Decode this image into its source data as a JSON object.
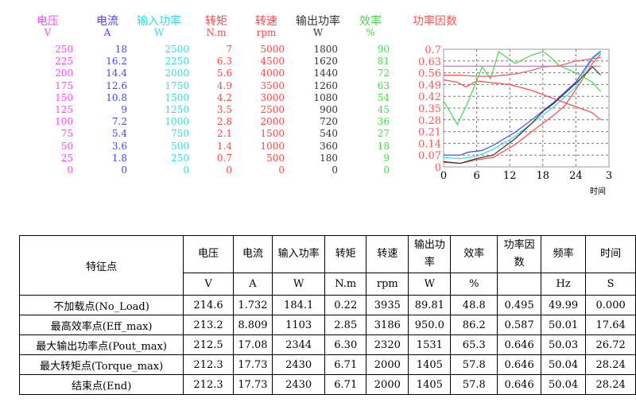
{
  "chart_data": {
    "type": "line",
    "xlabel": "时间",
    "x_ticks": [
      "0",
      "6",
      "12",
      "18",
      "24",
      "3"
    ],
    "xlim": [
      0,
      30
    ],
    "axes": [
      {
        "name": "电压",
        "unit": "V",
        "color": "#ff44ff",
        "ticks": [
          "250",
          "225",
          "200",
          "175",
          "150",
          "125",
          "100",
          "75",
          "50",
          "25",
          "0"
        ],
        "max": 250
      },
      {
        "name": "电流",
        "unit": "A",
        "color": "#4444ff",
        "ticks": [
          "18",
          "16.2",
          "14.4",
          "12.6",
          "10.8",
          "9",
          "7.2",
          "5.4",
          "3.6",
          "1.8",
          "0"
        ],
        "max": 18
      },
      {
        "name": "输入功率",
        "unit": "W",
        "color": "#33dddd",
        "ticks": [
          "2500",
          "2250",
          "2000",
          "1750",
          "1500",
          "1250",
          "1000",
          "750",
          "500",
          "250",
          "0"
        ],
        "max": 2500
      },
      {
        "name": "转矩",
        "unit": "N.m",
        "color": "#ff4444",
        "ticks": [
          "7",
          "6.3",
          "5.6",
          "4.9",
          "4.2",
          "3.5",
          "2.8",
          "2.1",
          "1.4",
          "0.7",
          "0"
        ],
        "max": 7
      },
      {
        "name": "转速",
        "unit": "rpm",
        "color": "#ff4444",
        "ticks": [
          "5000",
          "4500",
          "4000",
          "3500",
          "3000",
          "2500",
          "2000",
          "1500",
          "1000",
          "500",
          "0"
        ],
        "max": 5000
      },
      {
        "name": "输出功率",
        "unit": "W",
        "color": "#333333",
        "ticks": [
          "1800",
          "1620",
          "1440",
          "1260",
          "1080",
          "900",
          "720",
          "540",
          "360",
          "180",
          "0"
        ],
        "max": 1800
      },
      {
        "name": "效率",
        "unit": "%",
        "color": "#44dd44",
        "ticks": [
          "90",
          "81",
          "72",
          "63",
          "54",
          "45",
          "36",
          "27",
          "18",
          "9",
          "0"
        ],
        "max": 90
      },
      {
        "name": "功率因数",
        "unit": "",
        "color": "#ff5555",
        "ticks": [
          "0.7",
          "0.63",
          "0.56",
          "0.49",
          "0.42",
          "0.35",
          "0.28",
          "0.21",
          "0.14",
          "0.07",
          "0"
        ],
        "max": 0.7
      }
    ],
    "series": [
      {
        "name": "电压",
        "axis": 0,
        "points": [
          [
            0,
            214
          ],
          [
            28.5,
            214
          ]
        ]
      },
      {
        "name": "电流",
        "axis": 1,
        "points": [
          [
            0,
            1.8
          ],
          [
            3,
            1.8
          ],
          [
            4.5,
            2.25
          ],
          [
            7,
            2.5
          ],
          [
            9,
            3.3
          ],
          [
            13,
            5.3
          ],
          [
            16,
            7.2
          ],
          [
            20,
            9.9
          ],
          [
            24,
            13
          ],
          [
            27,
            16.7
          ],
          [
            28.5,
            17.73
          ]
        ]
      },
      {
        "name": "输入功率",
        "axis": 2,
        "points": [
          [
            0,
            200
          ],
          [
            3,
            175
          ],
          [
            6,
            225
          ],
          [
            9,
            375
          ],
          [
            13,
            650
          ],
          [
            16,
            925
          ],
          [
            20,
            1275
          ],
          [
            24,
            1700
          ],
          [
            27,
            2300
          ],
          [
            28.5,
            2430
          ]
        ]
      },
      {
        "name": "转矩",
        "axis": 3,
        "points": [
          [
            0,
            0.28
          ],
          [
            3,
            0.21
          ],
          [
            6,
            0.42
          ],
          [
            9,
            0.56
          ],
          [
            13,
            1.33
          ],
          [
            16,
            2.1
          ],
          [
            20,
            3.08
          ],
          [
            22,
            3.64
          ],
          [
            25,
            5.1
          ],
          [
            27,
            6.16
          ],
          [
            28.5,
            6.71
          ]
        ]
      },
      {
        "name": "转速",
        "axis": 4,
        "points": [
          [
            0,
            3700
          ],
          [
            2.5,
            3600
          ],
          [
            4,
            3400
          ],
          [
            6,
            3650
          ],
          [
            12,
            3500
          ],
          [
            16,
            3250
          ],
          [
            20,
            2900
          ],
          [
            27,
            2300
          ],
          [
            28.5,
            2000
          ]
        ]
      },
      {
        "name": "输出功率",
        "axis": 5,
        "points": [
          [
            0,
            81
          ],
          [
            3,
            54
          ],
          [
            6,
            126
          ],
          [
            9,
            180
          ],
          [
            13,
            432
          ],
          [
            16,
            666
          ],
          [
            18,
            846
          ],
          [
            20,
            972
          ],
          [
            24,
            1278
          ],
          [
            27,
            1530
          ],
          [
            28.5,
            1405
          ]
        ]
      },
      {
        "name": "效率",
        "axis": 6,
        "points": [
          [
            0,
            50.4
          ],
          [
            2.5,
            32.4
          ],
          [
            4.5,
            50.4
          ],
          [
            7,
            76.5
          ],
          [
            8.5,
            67.5
          ],
          [
            10,
            88.2
          ],
          [
            13,
            79.2
          ],
          [
            16,
            85.5
          ],
          [
            18,
            88.2
          ],
          [
            19,
            85.5
          ],
          [
            21,
            77.4
          ],
          [
            24,
            72
          ],
          [
            27,
            64.8
          ],
          [
            28.5,
            57.6
          ]
        ]
      },
      {
        "name": "功率因数",
        "axis": 7,
        "points": [
          [
            0,
            0.546
          ],
          [
            3,
            0.546
          ],
          [
            6,
            0.539
          ],
          [
            9,
            0.539
          ],
          [
            13,
            0.553
          ],
          [
            16,
            0.574
          ],
          [
            18,
            0.595
          ],
          [
            21,
            0.602
          ],
          [
            24,
            0.63
          ],
          [
            28.5,
            0.651
          ]
        ]
      }
    ]
  },
  "table": {
    "header": [
      "特征点",
      "电压",
      "电流",
      "输入功率",
      "转矩",
      "转速",
      "输出功率",
      "效率",
      "功率因数",
      "频率",
      "时间"
    ],
    "units": [
      "V",
      "A",
      "W",
      "N.m",
      "rpm",
      "W",
      "%",
      "",
      "Hz",
      "S"
    ],
    "rows": [
      [
        "不加载点(No_Load)",
        "214.6",
        "1.732",
        "184.1",
        "0.22",
        "3935",
        "89.81",
        "48.8",
        "0.495",
        "49.99",
        "0.000"
      ],
      [
        "最高效率点(Eff_max)",
        "213.2",
        "8.809",
        "1103",
        "2.85",
        "3186",
        "950.0",
        "86.2",
        "0.587",
        "50.01",
        "17.64"
      ],
      [
        "最大输出功率点(Pout_max)",
        "212.5",
        "17.08",
        "2344",
        "6.30",
        "2320",
        "1531",
        "65.3",
        "0.646",
        "50.03",
        "26.72"
      ],
      [
        "最大转矩点(Torque_max)",
        "212.3",
        "17.73",
        "2430",
        "6.71",
        "2000",
        "1405",
        "57.8",
        "0.646",
        "50.04",
        "28.24"
      ],
      [
        "结束点(End)",
        "212.3",
        "17.73",
        "2430",
        "6.71",
        "2000",
        "1405",
        "57.8",
        "0.646",
        "50.04",
        "28.24"
      ]
    ]
  }
}
